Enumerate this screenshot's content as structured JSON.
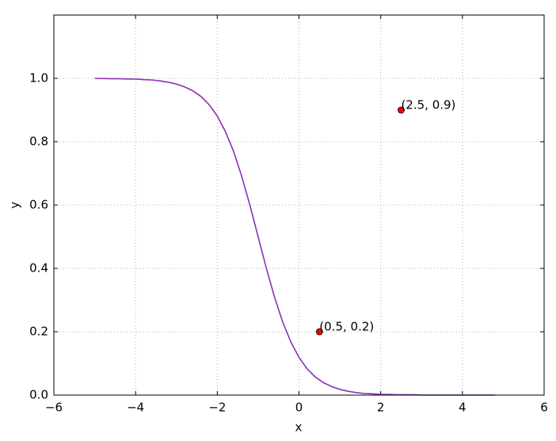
{
  "chart_data": {
    "type": "line",
    "xlabel": "x",
    "ylabel": "y",
    "xlim": [
      -6,
      6
    ],
    "ylim": [
      0,
      1.2
    ],
    "xticks": [
      {
        "value": -6,
        "label": "−6"
      },
      {
        "value": -4,
        "label": "−4"
      },
      {
        "value": -2,
        "label": "−2"
      },
      0,
      2,
      4,
      6
    ],
    "yticks": [
      {
        "value": 0,
        "label": "0.0"
      },
      0.2,
      0.4,
      0.6,
      0.8,
      {
        "value": 1,
        "label": "1.0"
      }
    ],
    "grid": true,
    "series": [
      {
        "color": "#8e2fb8",
        "x": [
          -5,
          -4.8,
          -4.6,
          -4.4,
          -4.2,
          -4,
          -3.8,
          -3.6,
          -3.4,
          -3.2,
          -3,
          -2.8,
          -2.6,
          -2.4,
          -2.2,
          -2,
          -1.8,
          -1.6,
          -1.4,
          -1.2,
          -1,
          -0.8,
          -0.6,
          -0.4,
          -0.2,
          0,
          0.2,
          0.4,
          0.6,
          0.8,
          1,
          1.2,
          1.4,
          1.6,
          1.8,
          2,
          2.2,
          2.4,
          2.6,
          2.8,
          3,
          3.2,
          3.4,
          3.6,
          3.8,
          4,
          4.2,
          4.4,
          4.6,
          4.8
        ],
        "values": [
          1,
          0.9995,
          0.999,
          0.999,
          0.998,
          0.998,
          0.996,
          0.995,
          0.992,
          0.988,
          0.982,
          0.973,
          0.961,
          0.943,
          0.917,
          0.881,
          0.832,
          0.769,
          0.69,
          0.599,
          0.5,
          0.401,
          0.31,
          0.231,
          0.168,
          0.119,
          0.083,
          0.057,
          0.039,
          0.027,
          0.018,
          0.012,
          0.008,
          0.005,
          0.004,
          0.002,
          0.002,
          0.001,
          0.001,
          0.001,
          0,
          0,
          0,
          0,
          0,
          0,
          0,
          0,
          0,
          0
        ]
      }
    ],
    "points": [
      {
        "x": 0.5,
        "y": 0.2,
        "label": "(0.5, 0.2)",
        "color": "#ff0000"
      },
      {
        "x": 2.5,
        "y": 0.9,
        "label": "(2.5, 0.9)",
        "color": "#ff0000"
      }
    ]
  }
}
